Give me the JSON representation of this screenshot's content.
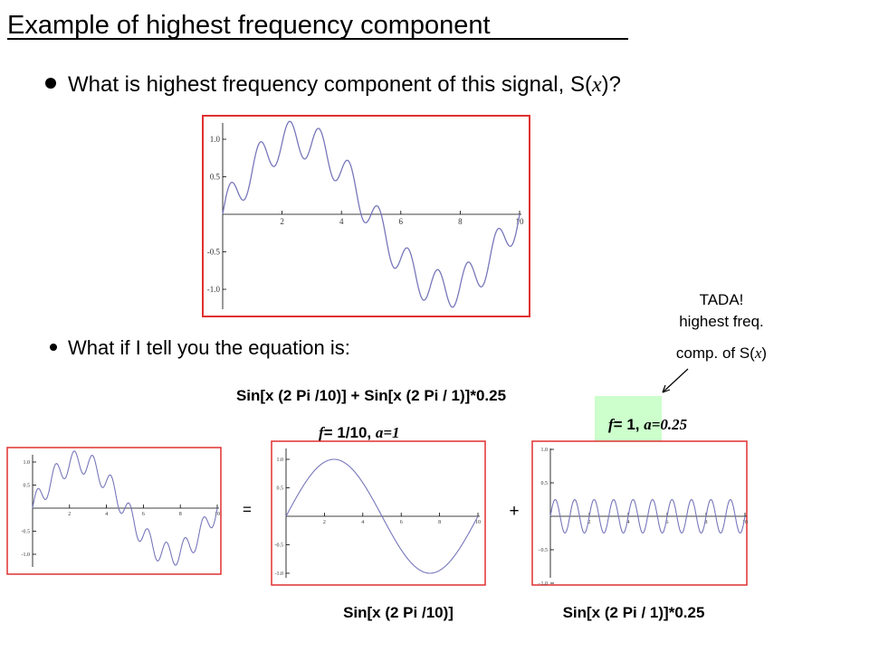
{
  "title": "Example of highest frequency component",
  "bullets": [
    {
      "before": "What is highest frequency component of this signal, S(",
      "italic": "x",
      "after": ")?"
    },
    {
      "text": "What if I tell you the equation is:"
    }
  ],
  "equation": "Sin[x (2 Pi /10)] + Sin[x (2 Pi / 1)]*0.25",
  "component_1": {
    "f_symbol": "f",
    "f_text": "= 1/10, ",
    "a_text": "a=1",
    "caption": "Sin[x (2 Pi /10)]"
  },
  "component_2": {
    "f_symbol": "f",
    "f_text": "= 1, ",
    "a_text": "a=0.25",
    "caption": "Sin[x (2 Pi / 1)]*0.25"
  },
  "callout": {
    "line1": "TADA!",
    "line2": "highest freq.",
    "line3_before": "comp. of S(",
    "line3_italic": "x",
    "line3_after": ")"
  },
  "equals": "=",
  "plus": "+",
  "plots": [
    {
      "xticks": [
        "2",
        "4",
        "6",
        "8",
        "10"
      ],
      "yticks": [
        "1.0",
        "0.5",
        "-0.5",
        "-1.0"
      ]
    },
    {
      "xticks": [
        "2",
        "4",
        "6",
        "8",
        "10"
      ],
      "yticks": [
        "1.0",
        "0.5",
        "-0.5",
        "-1.0"
      ]
    },
    {
      "xticks": [
        "2",
        "4",
        "6",
        "8",
        "10"
      ],
      "yticks": [
        "1.0",
        "0.5",
        "-0.5",
        "-1.0"
      ]
    },
    {
      "xticks": [
        "2",
        "4",
        "6",
        "8",
        "10"
      ],
      "yticks": [
        "1.0",
        "0.5",
        "−0.5",
        "−1.0"
      ]
    }
  ]
}
